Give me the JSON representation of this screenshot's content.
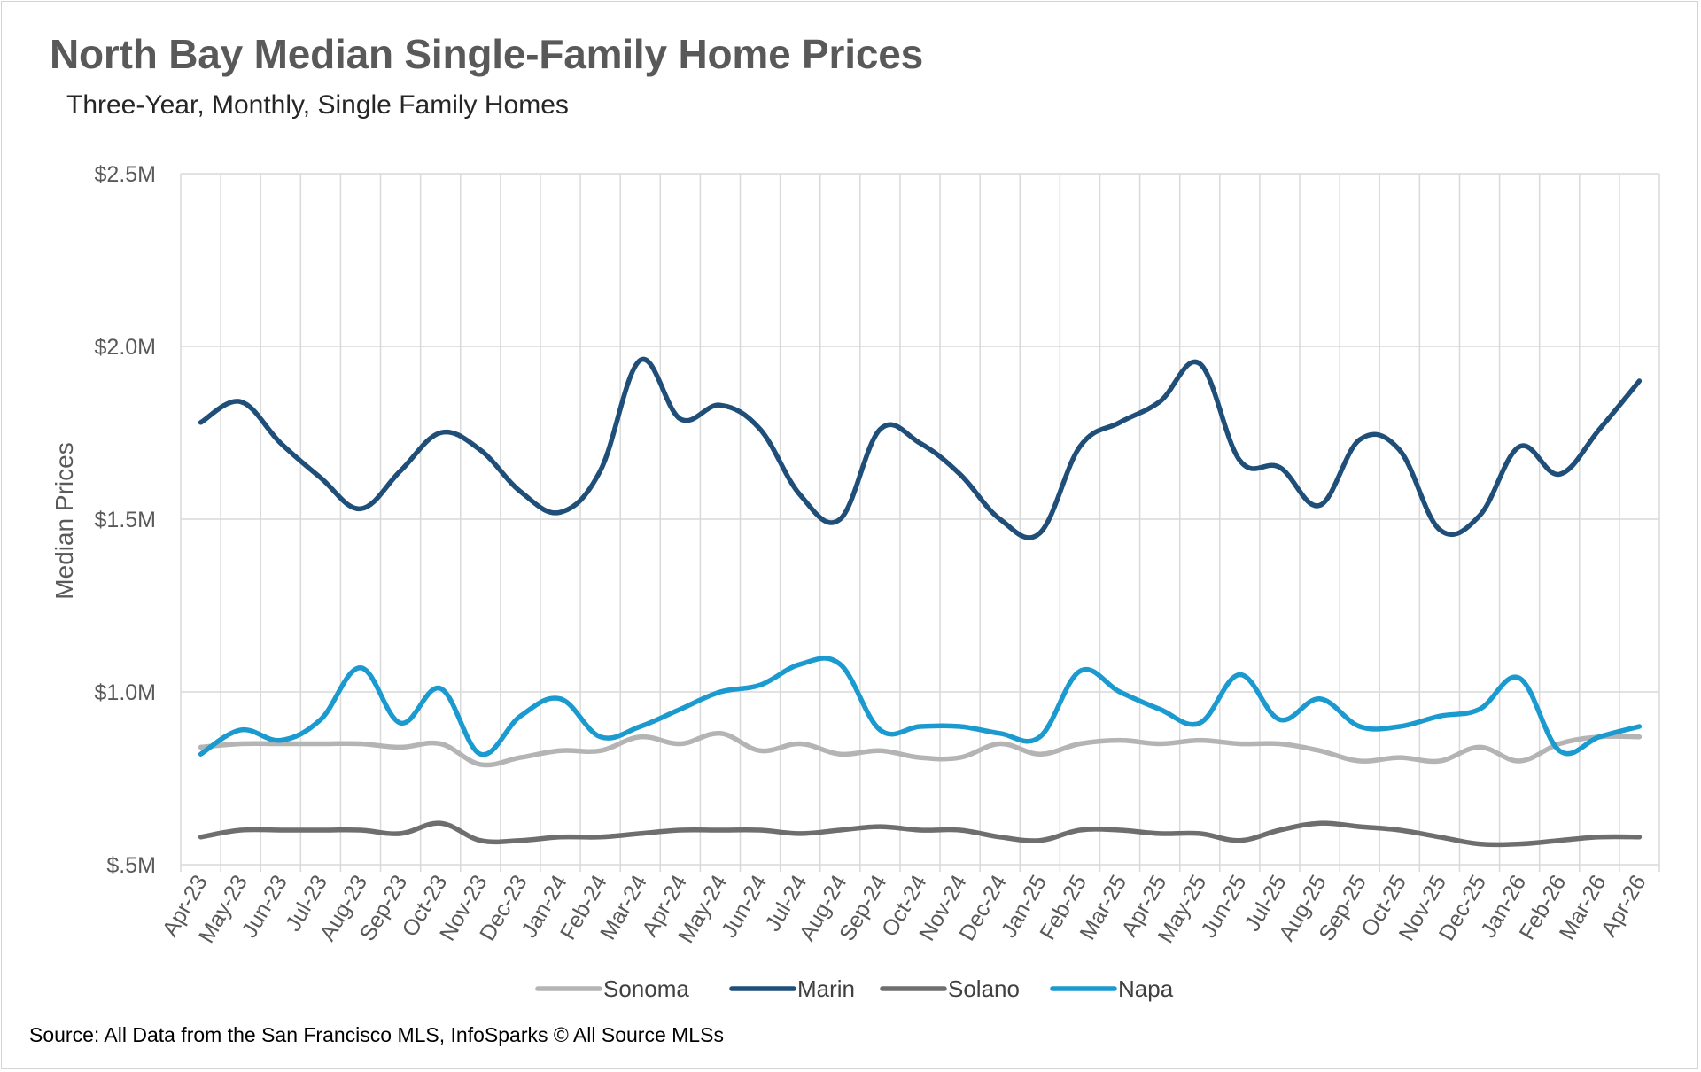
{
  "title": "North Bay Median Single-Family Home Prices",
  "subtitle": "Three-Year, Monthly, Single Family Homes",
  "source": "Source: All Data from the San Francisco MLS, InfoSparks © All Source MLSs",
  "chart_data": {
    "type": "line",
    "title": "North Bay Median Single-Family Home Prices",
    "subtitle": "Three-Year, Monthly, Single Family Homes",
    "xlabel": "",
    "ylabel": "Median Prices",
    "ylim": [
      0.5,
      2.5
    ],
    "yticks": [
      0.5,
      1.0,
      1.5,
      2.0,
      2.5
    ],
    "ytick_labels": [
      "$.5M",
      "$1.0M",
      "$1.5M",
      "$2.0M",
      "$2.5M"
    ],
    "grid": "both",
    "legend_position": "bottom",
    "categories": [
      "Apr-23",
      "May-23",
      "Jun-23",
      "Jul-23",
      "Aug-23",
      "Sep-23",
      "Oct-23",
      "Nov-23",
      "Dec-23",
      "Jan-24",
      "Feb-24",
      "Mar-24",
      "Apr-24",
      "May-24",
      "Jun-24",
      "Jul-24",
      "Aug-24",
      "Sep-24",
      "Oct-24",
      "Nov-24",
      "Dec-24",
      "Jan-25",
      "Feb-25",
      "Mar-25",
      "Apr-25",
      "May-25",
      "Jun-25",
      "Jul-25",
      "Aug-25",
      "Sep-25",
      "Oct-25",
      "Nov-25",
      "Dec-25",
      "Jan-26",
      "Feb-26",
      "Mar-26",
      "Apr-26"
    ],
    "series": [
      {
        "name": "Sonoma",
        "color": "#b4b4b4",
        "values": [
          0.84,
          0.85,
          0.85,
          0.85,
          0.85,
          0.84,
          0.85,
          0.79,
          0.81,
          0.83,
          0.83,
          0.87,
          0.85,
          0.88,
          0.83,
          0.85,
          0.82,
          0.83,
          0.81,
          0.81,
          0.85,
          0.82,
          0.85,
          0.86,
          0.85,
          0.86,
          0.85,
          0.85,
          0.83,
          0.8,
          0.81,
          0.8,
          0.84,
          0.8,
          0.85,
          0.87,
          0.87
        ]
      },
      {
        "name": "Marin",
        "color": "#1f4e79",
        "values": [
          1.78,
          1.84,
          1.72,
          1.62,
          1.53,
          1.64,
          1.75,
          1.7,
          1.58,
          1.52,
          1.64,
          1.96,
          1.79,
          1.83,
          1.76,
          1.57,
          1.5,
          1.76,
          1.72,
          1.63,
          1.5,
          1.46,
          1.71,
          1.78,
          1.84,
          1.95,
          1.67,
          1.65,
          1.54,
          1.73,
          1.7,
          1.47,
          1.51,
          1.71,
          1.63,
          1.76,
          1.9
        ]
      },
      {
        "name": "Solano",
        "color": "#6e6e6e",
        "values": [
          0.58,
          0.6,
          0.6,
          0.6,
          0.6,
          0.59,
          0.62,
          0.57,
          0.57,
          0.58,
          0.58,
          0.59,
          0.6,
          0.6,
          0.6,
          0.59,
          0.6,
          0.61,
          0.6,
          0.6,
          0.58,
          0.57,
          0.6,
          0.6,
          0.59,
          0.59,
          0.57,
          0.6,
          0.62,
          0.61,
          0.6,
          0.58,
          0.56,
          0.56,
          0.57,
          0.58,
          0.58
        ]
      },
      {
        "name": "Napa",
        "color": "#1b9ad0",
        "values": [
          0.82,
          0.89,
          0.86,
          0.92,
          1.07,
          0.91,
          1.01,
          0.82,
          0.93,
          0.98,
          0.87,
          0.9,
          0.95,
          1.0,
          1.02,
          1.08,
          1.08,
          0.89,
          0.9,
          0.9,
          0.88,
          0.87,
          1.06,
          1.0,
          0.95,
          0.91,
          1.05,
          0.92,
          0.98,
          0.9,
          0.9,
          0.93,
          0.95,
          1.04,
          0.83,
          0.87,
          0.9
        ]
      }
    ]
  }
}
